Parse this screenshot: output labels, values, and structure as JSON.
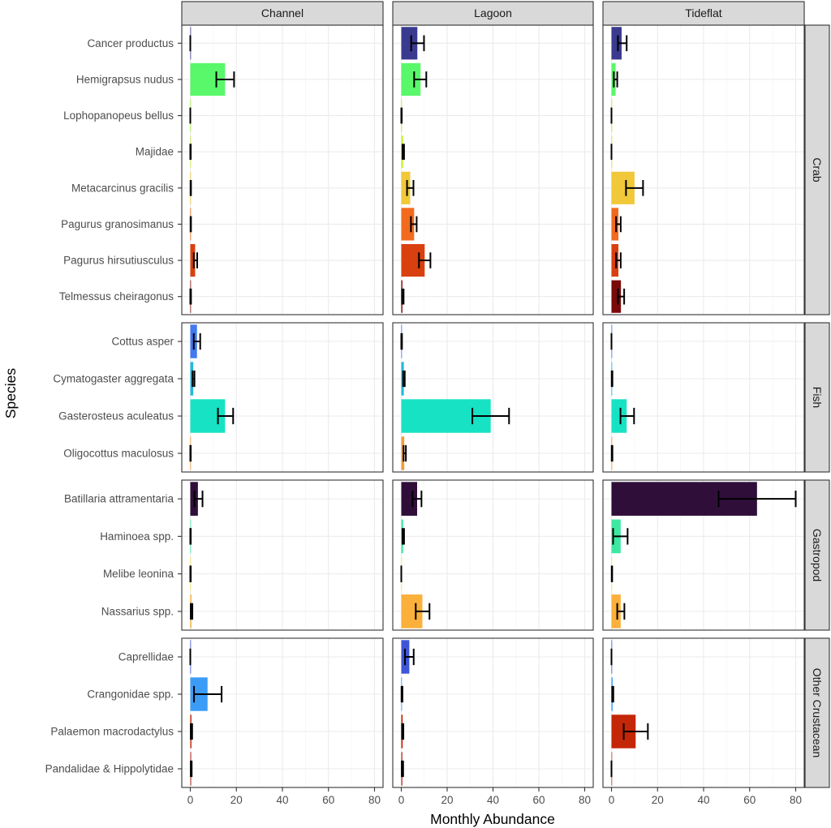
{
  "chart_data": {
    "type": "bar",
    "orientation": "horizontal",
    "title": "",
    "xlabel": "Monthly Abundance",
    "ylabel": "Species",
    "xlim": [
      0,
      80
    ],
    "x_ticks": [
      0,
      20,
      40,
      60,
      80
    ],
    "grid": true,
    "legend": "none",
    "error_bars": true,
    "columns": [
      "Channel",
      "Lagoon",
      "Tideflat"
    ],
    "rows": [
      {
        "name": "Crab",
        "species": [
          {
            "name": "Cancer productus",
            "color": "#3a3b8f",
            "values": [
              {
                "v": 0,
                "lo": 0,
                "hi": 0
              },
              {
                "v": 7.0,
                "lo": 4.3,
                "hi": 9.9
              },
              {
                "v": 4.4,
                "lo": 2.8,
                "hi": 6.6
              }
            ]
          },
          {
            "name": "Hemigrapsus nudus",
            "color": "#58f86a",
            "values": [
              {
                "v": 15.1,
                "lo": 11.3,
                "hi": 19.0
              },
              {
                "v": 8.4,
                "lo": 5.6,
                "hi": 10.9
              },
              {
                "v": 1.8,
                "lo": 1.0,
                "hi": 2.5
              }
            ]
          },
          {
            "name": "Lophopanopeus bellus",
            "color": "#a4f03a",
            "values": [
              {
                "v": 0,
                "lo": 0,
                "hi": 0
              },
              {
                "v": 0.1,
                "lo": 0,
                "hi": 0.2
              },
              {
                "v": 0,
                "lo": 0,
                "hi": 0
              }
            ]
          },
          {
            "name": "Majidae",
            "color": "#c9f23c",
            "values": [
              {
                "v": 0.1,
                "lo": 0,
                "hi": 0.2
              },
              {
                "v": 0.8,
                "lo": 0.5,
                "hi": 1.2
              },
              {
                "v": 0,
                "lo": 0,
                "hi": 0
              }
            ]
          },
          {
            "name": "Metacarcinus gracilis",
            "color": "#f0c839",
            "values": [
              {
                "v": 0.2,
                "lo": 0.1,
                "hi": 0.3
              },
              {
                "v": 3.9,
                "lo": 2.5,
                "hi": 5.3
              },
              {
                "v": 10.0,
                "lo": 6.3,
                "hi": 13.7
              }
            ]
          },
          {
            "name": "Pagurus granosimanus",
            "color": "#f26a1e",
            "values": [
              {
                "v": 0.2,
                "lo": 0.1,
                "hi": 0.3
              },
              {
                "v": 5.6,
                "lo": 4.2,
                "hi": 6.7
              },
              {
                "v": 3.0,
                "lo": 2.0,
                "hi": 4.0
              }
            ]
          },
          {
            "name": "Pagurus hirsutiusculus",
            "color": "#d8400f",
            "values": [
              {
                "v": 2.1,
                "lo": 1.5,
                "hi": 3.0
              },
              {
                "v": 10.2,
                "lo": 7.7,
                "hi": 12.7
              },
              {
                "v": 3.0,
                "lo": 2.0,
                "hi": 4.0
              }
            ]
          },
          {
            "name": "Telmessus cheiragonus",
            "color": "#7a0a0a",
            "values": [
              {
                "v": 0.1,
                "lo": 0,
                "hi": 0.3
              },
              {
                "v": 0.5,
                "lo": 0.3,
                "hi": 1.0
              },
              {
                "v": 4.1,
                "lo": 2.8,
                "hi": 5.5
              }
            ]
          }
        ]
      },
      {
        "name": "Fish",
        "species": [
          {
            "name": "Cottus asper",
            "color": "#4279f0",
            "values": [
              {
                "v": 2.9,
                "lo": 1.5,
                "hi": 4.3
              },
              {
                "v": 0.1,
                "lo": 0,
                "hi": 0.3
              },
              {
                "v": 0,
                "lo": 0,
                "hi": 0
              }
            ]
          },
          {
            "name": "Cymatogaster aggregata",
            "color": "#25b8db",
            "values": [
              {
                "v": 1.3,
                "lo": 1.0,
                "hi": 1.8
              },
              {
                "v": 1.1,
                "lo": 0.8,
                "hi": 1.5
              },
              {
                "v": 0.3,
                "lo": 0.1,
                "hi": 0.4
              }
            ]
          },
          {
            "name": "Gasterosteus aculeatus",
            "color": "#17e2c4",
            "values": [
              {
                "v": 15.1,
                "lo": 12.0,
                "hi": 18.6
              },
              {
                "v": 39.0,
                "lo": 31.0,
                "hi": 47.0
              },
              {
                "v": 6.6,
                "lo": 3.9,
                "hi": 9.8
              }
            ]
          },
          {
            "name": "Oligocottus maculosus",
            "color": "#f59b3c",
            "values": [
              {
                "v": 0.1,
                "lo": 0,
                "hi": 0.2
              },
              {
                "v": 1.3,
                "lo": 1.0,
                "hi": 2.0
              },
              {
                "v": 0.3,
                "lo": 0.1,
                "hi": 0.4
              }
            ]
          }
        ]
      },
      {
        "name": "Gastropod",
        "species": [
          {
            "name": "Batillaria attramentaria",
            "color": "#2f0f3a",
            "values": [
              {
                "v": 3.3,
                "lo": 1.8,
                "hi": 5.3
              },
              {
                "v": 6.9,
                "lo": 4.9,
                "hi": 8.8
              },
              {
                "v": 63.2,
                "lo": 46.5,
                "hi": 80.0
              }
            ]
          },
          {
            "name": "Haminoea spp.",
            "color": "#3ee8a0",
            "values": [
              {
                "v": 0.1,
                "lo": 0,
                "hi": 0.2
              },
              {
                "v": 0.8,
                "lo": 0.5,
                "hi": 1.2
              },
              {
                "v": 4.0,
                "lo": 0.7,
                "hi": 7.0
              }
            ]
          },
          {
            "name": "Melibe leonina",
            "color": "#f7e46a",
            "values": [
              {
                "v": 0.1,
                "lo": 0,
                "hi": 0.2
              },
              {
                "v": 0,
                "lo": 0,
                "hi": 0
              },
              {
                "v": 0.2,
                "lo": 0.1,
                "hi": 0.3
              }
            ]
          },
          {
            "name": "Nassarius spp.",
            "color": "#fbb03b",
            "values": [
              {
                "v": 0.5,
                "lo": 0.2,
                "hi": 0.9
              },
              {
                "v": 9.2,
                "lo": 6.3,
                "hi": 12.3
              },
              {
                "v": 4.0,
                "lo": 2.5,
                "hi": 5.6
              }
            ]
          }
        ]
      },
      {
        "name": "Other Crustacean",
        "species": [
          {
            "name": "Caprellidae",
            "color": "#3f55d8",
            "values": [
              {
                "v": 0,
                "lo": 0,
                "hi": 0
              },
              {
                "v": 3.5,
                "lo": 1.6,
                "hi": 5.4
              },
              {
                "v": 0,
                "lo": 0,
                "hi": 0
              }
            ]
          },
          {
            "name": "Crangonidae spp.",
            "color": "#3b9cf7",
            "values": [
              {
                "v": 7.5,
                "lo": 1.6,
                "hi": 13.6
              },
              {
                "v": 0.3,
                "lo": 0.1,
                "hi": 0.5
              },
              {
                "v": 0.5,
                "lo": 0.3,
                "hi": 0.8
              }
            ]
          },
          {
            "name": "Palaemon macrodactylus",
            "color": "#c42608",
            "values": [
              {
                "v": 0.5,
                "lo": 0.2,
                "hi": 0.8
              },
              {
                "v": 0.6,
                "lo": 0.3,
                "hi": 0.9
              },
              {
                "v": 10.5,
                "lo": 5.3,
                "hi": 15.8
              }
            ]
          },
          {
            "name": "Pandalidae & Hippolytidae",
            "color": "#b84030",
            "values": [
              {
                "v": 0.4,
                "lo": 0.2,
                "hi": 0.6
              },
              {
                "v": 0.5,
                "lo": 0.2,
                "hi": 0.8
              },
              {
                "v": 0,
                "lo": 0,
                "hi": 0
              }
            ]
          }
        ]
      }
    ]
  }
}
